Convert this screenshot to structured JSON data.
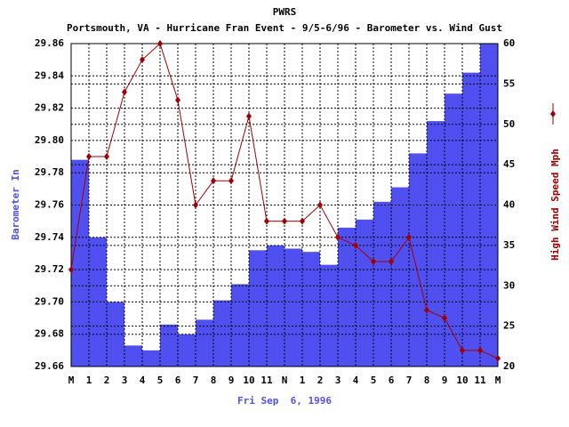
{
  "chart_data": {
    "type": "bar_line",
    "title": "PWRS",
    "subtitle": "Portsmouth, VA - Hurricane Fran Event - 9/5-6/96 - Barometer vs. Wind Gust",
    "x_label": "Fri Sep  6, 1996",
    "y_label": "Barometer In",
    "y2_label": "High Wind Speed Mph",
    "categories": [
      "M",
      "1",
      "2",
      "3",
      "4",
      "5",
      "6",
      "7",
      "8",
      "9",
      "10",
      "11",
      "N",
      "1",
      "2",
      "3",
      "4",
      "5",
      "6",
      "7",
      "8",
      "9",
      "10",
      "11",
      "M"
    ],
    "series": [
      {
        "name": "Barometer In",
        "type": "bar",
        "color": "#5050f0",
        "axis": "y",
        "values": [
          null,
          29.788,
          29.74,
          29.7,
          29.673,
          29.67,
          29.686,
          29.68,
          29.689,
          29.701,
          29.711,
          29.732,
          29.735,
          29.733,
          29.731,
          29.723,
          29.746,
          29.751,
          29.762,
          29.771,
          29.792,
          29.812,
          29.829,
          29.842,
          29.86
        ]
      },
      {
        "name": "High Wind Speed Mph",
        "type": "line",
        "color": "#a00000",
        "axis": "y2",
        "values": [
          32,
          46,
          46,
          54,
          58,
          60,
          53,
          40,
          43,
          43,
          51,
          38,
          38,
          38,
          40,
          36,
          35,
          33,
          33,
          36,
          27,
          26,
          22,
          22,
          21
        ]
      }
    ],
    "ylim": [
      29.66,
      29.86
    ],
    "yticks": [
      29.66,
      29.68,
      {
        "value": 29.7,
        "label": "29.70"
      },
      29.72,
      29.74,
      29.76,
      29.78,
      {
        "value": 29.8,
        "label": "29.80"
      },
      29.82,
      29.84,
      29.86
    ],
    "y2lim": [
      20,
      60
    ],
    "y2ticks": [
      20,
      25,
      30,
      35,
      40,
      45,
      50,
      55,
      60
    ],
    "grid": true
  }
}
